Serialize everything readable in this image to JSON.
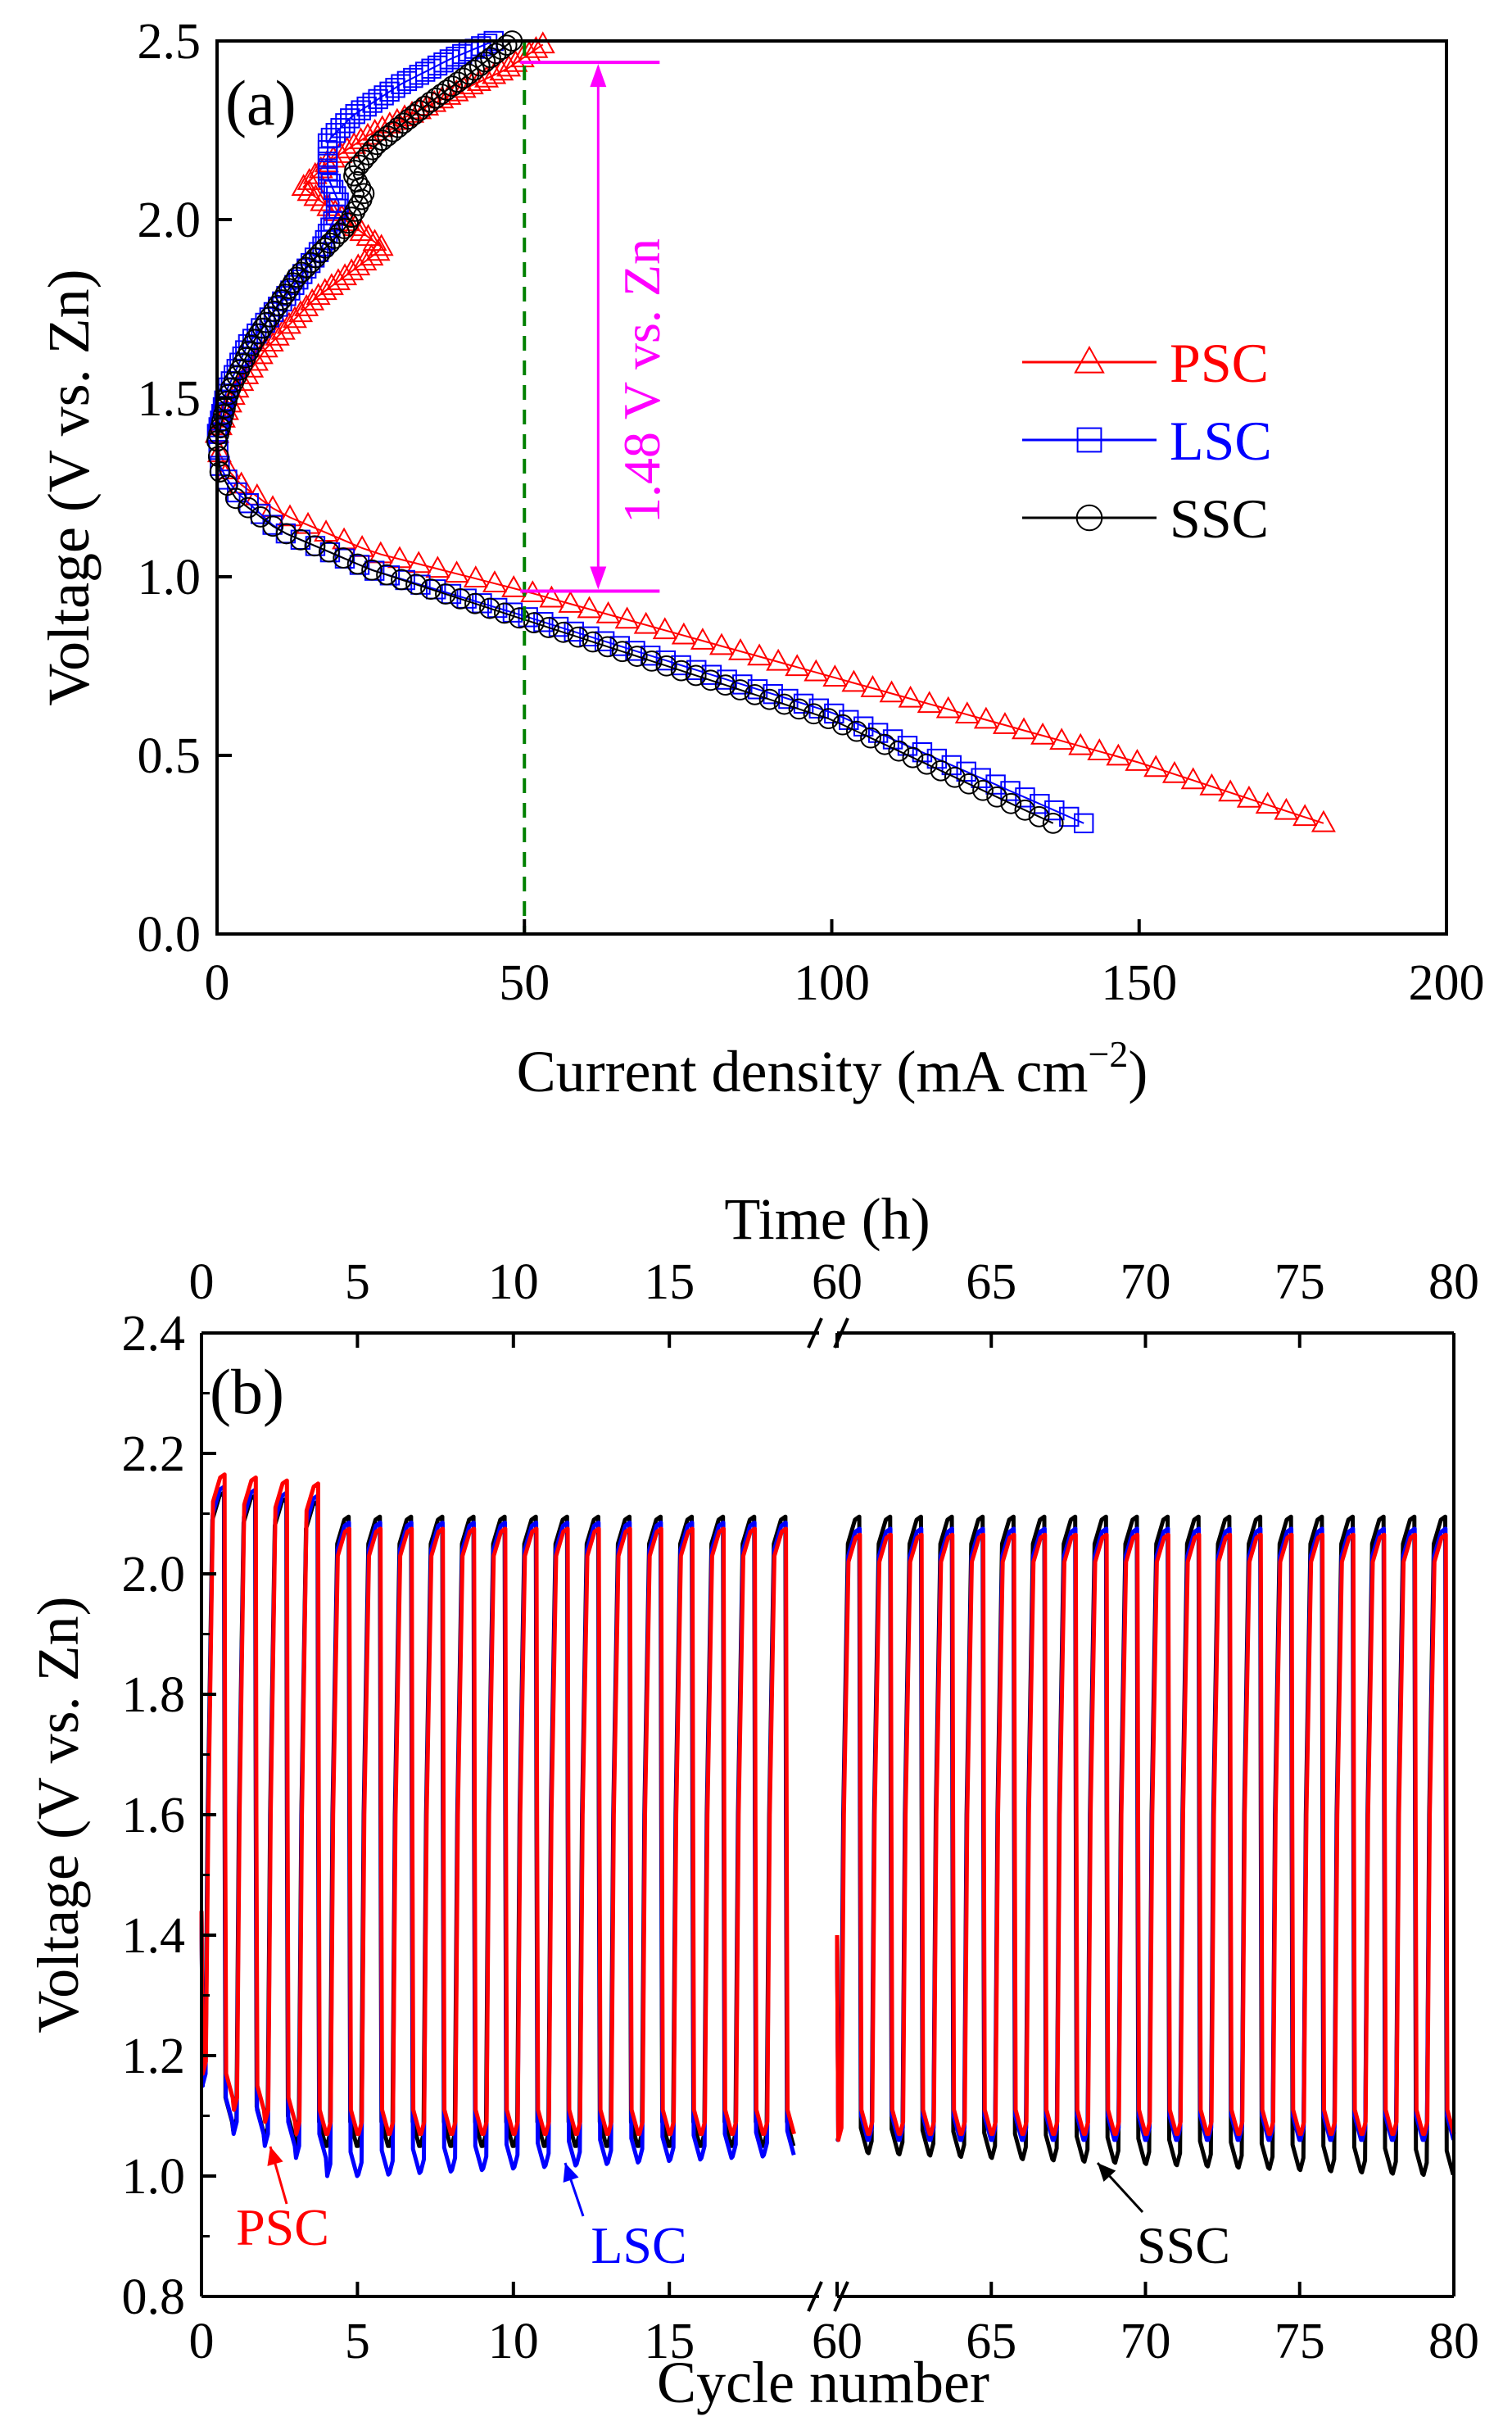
{
  "chart_data": [
    {
      "panel": "(a)",
      "type": "line",
      "xlabel": "Current density (mA cm",
      "xlabel_sup": "−2",
      "xlabel_close": ")",
      "ylabel": "Voltage (V vs. Zn)",
      "xlim": [
        0,
        200
      ],
      "ylim": [
        0,
        2.5
      ],
      "xticks": [
        "0",
        "50",
        "100",
        "150",
        "200"
      ],
      "yticks": [
        "0.0",
        "0.5",
        "1.0",
        "1.5",
        "2.0",
        "2.5"
      ],
      "annotation": "1.48 V vs. Zn",
      "annotation_color": "#ff00ff",
      "reference_x": 50,
      "reference_color": "#008000",
      "arrow_y": [
        0.96,
        2.44
      ],
      "legend_position": "right",
      "series": [
        {
          "name": "PSC",
          "color": "#ff0000",
          "marker": "triangle",
          "discharge": {
            "ocv": 1.4,
            "points": [
              [
                0,
                1.4
              ],
              [
                0.5,
                1.33
              ],
              [
                3,
                1.27
              ],
              [
                10,
                1.18
              ],
              [
                25,
                1.07
              ],
              [
                50,
                0.96
              ],
              [
                100,
                0.72
              ],
              [
                150,
                0.48
              ],
              [
                180,
                0.31
              ]
            ]
          },
          "charge": {
            "points": [
              [
                0,
                1.4
              ],
              [
                3,
                1.52
              ],
              [
                8,
                1.64
              ],
              [
                16,
                1.78
              ],
              [
                27,
                1.92
              ],
              [
                20,
                2.01
              ],
              [
                14,
                2.09
              ],
              [
                18,
                2.16
              ],
              [
                25,
                2.24
              ],
              [
                37,
                2.34
              ],
              [
                47,
                2.42
              ],
              [
                53,
                2.49
              ]
            ]
          }
        },
        {
          "name": "LSC",
          "color": "#0000ff",
          "marker": "square",
          "discharge": {
            "ocv": 1.4,
            "points": [
              [
                0,
                1.4
              ],
              [
                0.5,
                1.3
              ],
              [
                3,
                1.24
              ],
              [
                10,
                1.13
              ],
              [
                25,
                1.02
              ],
              [
                50,
                0.89
              ],
              [
                100,
                0.62
              ],
              [
                141,
                0.31
              ]
            ]
          },
          "charge": {
            "points": [
              [
                0,
                1.4
              ],
              [
                1.5,
                1.52
              ],
              [
                5,
                1.65
              ],
              [
                11,
                1.78
              ],
              [
                17,
                1.92
              ],
              [
                20,
                2.04
              ],
              [
                18,
                2.12
              ],
              [
                18,
                2.22
              ],
              [
                22,
                2.29
              ],
              [
                30,
                2.38
              ],
              [
                38,
                2.45
              ],
              [
                45,
                2.5
              ]
            ]
          }
        },
        {
          "name": "SSC",
          "color": "#000000",
          "marker": "circle",
          "discharge": {
            "ocv": 1.38,
            "points": [
              [
                0,
                1.38
              ],
              [
                0.5,
                1.29
              ],
              [
                3,
                1.22
              ],
              [
                10,
                1.13
              ],
              [
                25,
                1.02
              ],
              [
                50,
                0.88
              ],
              [
                100,
                0.6
              ],
              [
                136,
                0.31
              ]
            ]
          },
          "charge": {
            "points": [
              [
                0,
                1.38
              ],
              [
                2,
                1.52
              ],
              [
                6,
                1.66
              ],
              [
                13,
                1.84
              ],
              [
                21,
                1.98
              ],
              [
                24,
                2.07
              ],
              [
                22,
                2.13
              ],
              [
                26,
                2.21
              ],
              [
                34,
                2.32
              ],
              [
                42,
                2.42
              ],
              [
                48,
                2.5
              ]
            ]
          }
        }
      ]
    },
    {
      "panel": "(b)",
      "type": "line",
      "xlabel": "Cycle number",
      "x2label": "Time (h)",
      "ylabel": "Voltage (V vs. Zn)",
      "ylim": [
        0.8,
        2.4
      ],
      "yticks": [
        "0.8",
        "1.0",
        "1.2",
        "1.4",
        "1.6",
        "1.8",
        "2.0",
        "2.2",
        "2.4"
      ],
      "xticks_left": [
        "0",
        "5",
        "10",
        "15"
      ],
      "xticks_right": [
        "60",
        "65",
        "70",
        "75",
        "80"
      ],
      "axis_break_between": [
        20,
        60
      ],
      "series": [
        {
          "name": "PSC",
          "color": "#ff0000",
          "label": "PSC",
          "segment1": {
            "first_peak": 2.16,
            "charge_plateau": 2.07,
            "discharge_low": 1.07
          },
          "segment2": {
            "charge_plateau": 2.06,
            "discharge_low": 1.07
          }
        },
        {
          "name": "LSC",
          "color": "#0000ff",
          "label": "LSC",
          "segment1": {
            "first_peak": 2.14,
            "charge_plateau": 2.08,
            "discharge_low": 1.0
          },
          "segment2": {
            "charge_plateau": 2.07,
            "discharge_low": 1.06
          }
        },
        {
          "name": "SSC",
          "color": "#000000",
          "label": "SSC",
          "segment1": {
            "first_peak": 2.13,
            "charge_plateau": 2.09,
            "discharge_low": 1.05
          },
          "segment2": {
            "charge_plateau": 2.09,
            "discharge_low": 1.0
          }
        }
      ]
    }
  ]
}
